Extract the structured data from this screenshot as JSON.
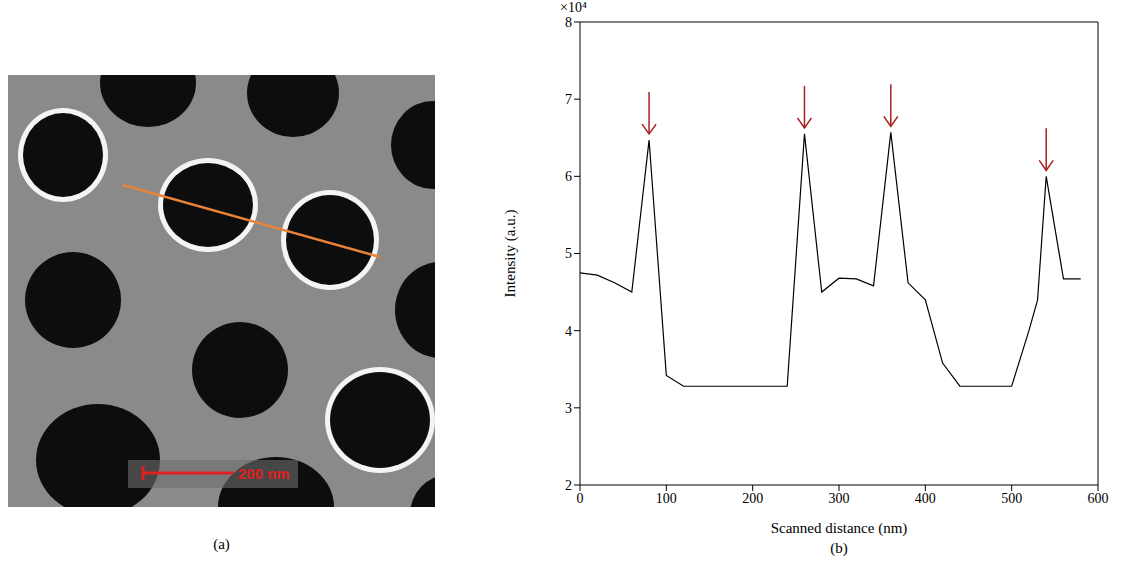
{
  "figure": {
    "panel_labels": [
      "(a)",
      "(b)"
    ]
  },
  "image": {
    "scale_bar": "200 nm"
  },
  "chart_data": {
    "type": "line",
    "x_label": "Scanned distance (nm)",
    "y_label": "Intensity (a.u.)",
    "annotations": [
      {
        "text": "×10⁴"
      }
    ],
    "x": [
      0,
      20,
      40,
      60,
      80,
      100,
      120,
      240,
      260,
      280,
      300,
      320,
      340,
      360,
      380,
      400,
      420,
      440,
      500,
      520,
      530,
      540,
      560,
      580
    ],
    "values": [
      4.75,
      4.72,
      4.62,
      4.5,
      6.47,
      3.42,
      3.28,
      3.28,
      6.55,
      4.5,
      4.68,
      4.67,
      4.58,
      6.57,
      4.62,
      4.4,
      3.58,
      3.28,
      3.28,
      4.0,
      4.4,
      6.0,
      4.67,
      4.67
    ],
    "color": "#000000",
    "xlim": [
      0,
      600
    ],
    "xticks": [
      0,
      100,
      200,
      300,
      400,
      500,
      600
    ],
    "ylim": [
      2,
      8
    ],
    "yticks": [
      2,
      3,
      4,
      5,
      6,
      7,
      8
    ],
    "grid": false
  }
}
